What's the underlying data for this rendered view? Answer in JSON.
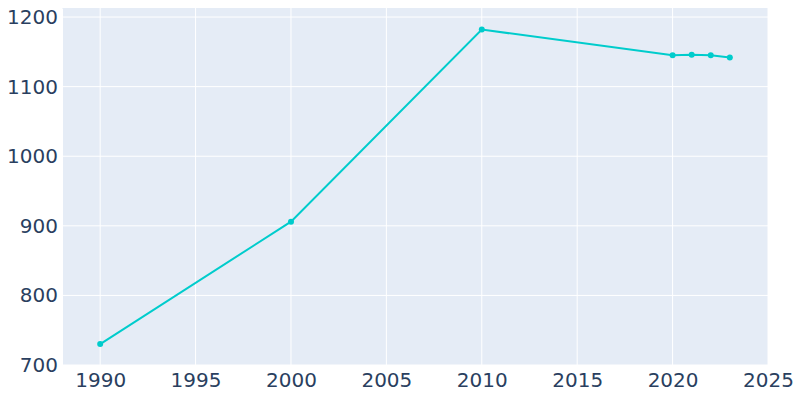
{
  "chart_data": {
    "type": "line",
    "x": [
      1990,
      2000,
      2010,
      2020,
      2021,
      2022,
      2023
    ],
    "values": [
      730,
      906,
      1182,
      1145,
      1146,
      1145,
      1142
    ],
    "color": "#00cccc",
    "marker": "circle",
    "xlim": [
      1988,
      2025
    ],
    "xticks": [
      1990,
      1995,
      2000,
      2005,
      2010,
      2015,
      2020,
      2025
    ],
    "ylim": [
      700,
      1213
    ],
    "yticks": [
      700,
      800,
      900,
      1000,
      1100,
      1200
    ],
    "grid": true
  }
}
